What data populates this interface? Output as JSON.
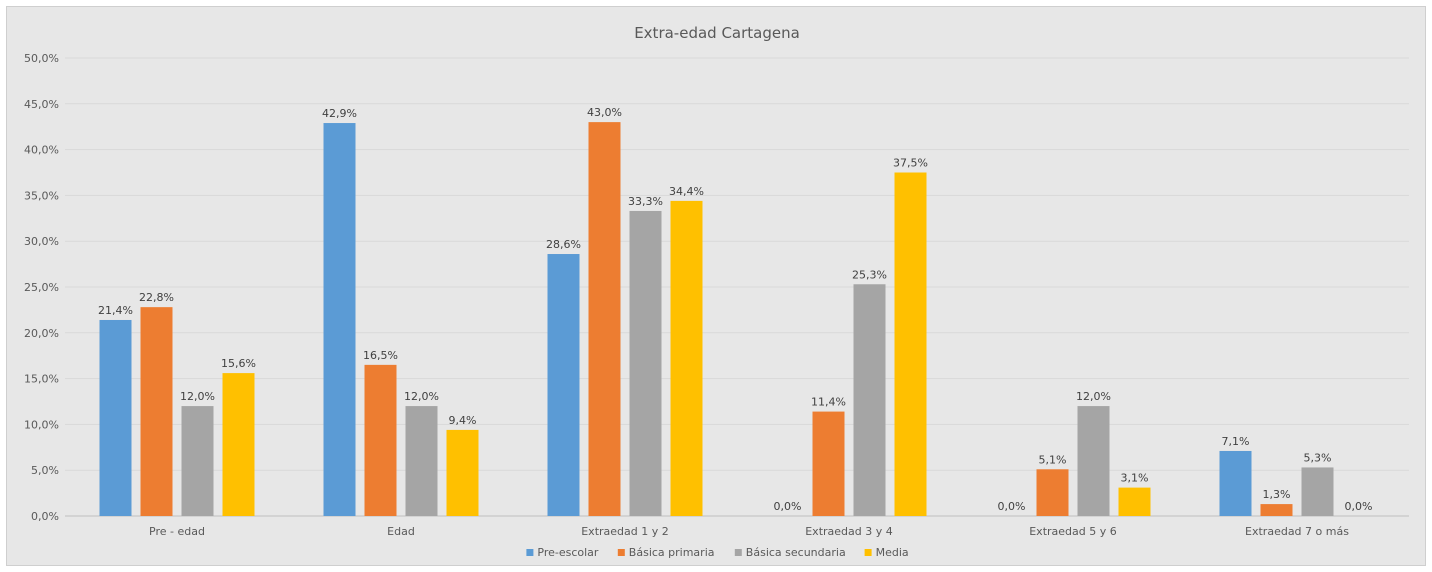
{
  "chart_data": {
    "type": "bar",
    "title": "Extra-edad Cartagena",
    "xlabel": "",
    "ylabel": "",
    "ylim": [
      0,
      50
    ],
    "ytick_step": 5,
    "yticks": [
      "0,0%",
      "5,0%",
      "10,0%",
      "15,0%",
      "20,0%",
      "25,0%",
      "30,0%",
      "35,0%",
      "40,0%",
      "45,0%",
      "50,0%"
    ],
    "grid": true,
    "legend_position": "bottom",
    "categories": [
      "Pre - edad",
      "Edad",
      "Extraedad 1 y 2",
      "Extraedad 3 y 4",
      "Extraedad 5 y 6",
      "Extraedad 7 o más"
    ],
    "series": [
      {
        "name": "Pre-escolar",
        "color": "#5b9bd5",
        "values": [
          21.4,
          42.9,
          28.6,
          0.0,
          0.0,
          7.1
        ],
        "labels": [
          "21,4%",
          "42,9%",
          "28,6%",
          "0,0%",
          "0,0%",
          "7,1%"
        ]
      },
      {
        "name": "Básica primaria",
        "color": "#ed7d31",
        "values": [
          22.8,
          16.5,
          43.0,
          11.4,
          5.1,
          1.3
        ],
        "labels": [
          "22,8%",
          "16,5%",
          "43,0%",
          "11,4%",
          "5,1%",
          "1,3%"
        ]
      },
      {
        "name": "Básica secundaria",
        "color": "#a5a5a5",
        "values": [
          12.0,
          12.0,
          33.3,
          25.3,
          12.0,
          5.3
        ],
        "labels": [
          "12,0%",
          "12,0%",
          "33,3%",
          "25,3%",
          "12,0%",
          "5,3%"
        ]
      },
      {
        "name": "Media",
        "color": "#ffc000",
        "values": [
          15.6,
          9.4,
          34.4,
          37.5,
          3.1,
          0.0
        ],
        "labels": [
          "15,6%",
          "9,4%",
          "34,4%",
          "37,5%",
          "3,1%",
          "0,0%"
        ]
      }
    ]
  }
}
